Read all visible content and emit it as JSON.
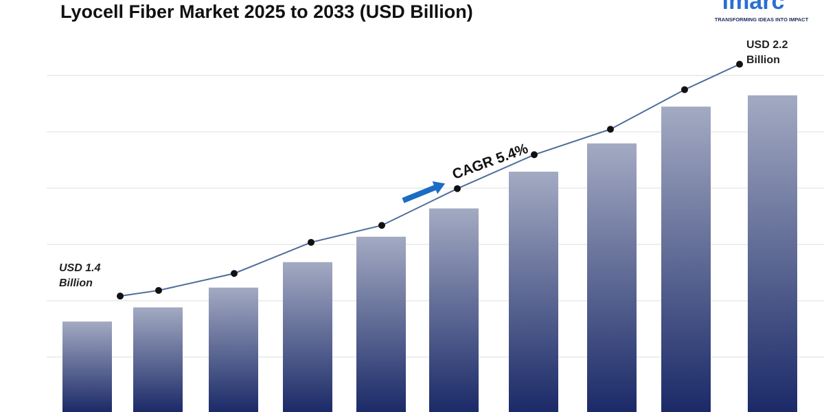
{
  "chart_data": {
    "type": "bar",
    "title": "Lyocell Fiber Market 2025 to 2033 (USD Billion)",
    "categories": [
      null,
      null,
      null,
      null,
      null,
      null,
      null,
      null,
      null,
      null
    ],
    "values": [
      1.4,
      1.45,
      1.52,
      1.61,
      1.7,
      1.8,
      1.93,
      2.03,
      2.16,
      2.2
    ],
    "trend_values": [
      1.49,
      1.51,
      1.57,
      1.68,
      1.74,
      1.87,
      1.99,
      2.08,
      2.22,
      2.31
    ],
    "bar_color_top": "#a3aac2",
    "bar_color_bottom": "#1b2a68",
    "trend_color": "#4d6b9c",
    "ylim": [
      1.08,
      2.27
    ],
    "start_label": [
      "USD 1.4",
      "Billion"
    ],
    "end_label": [
      "USD 2.2",
      "Billion"
    ],
    "cagr_label": "CAGR 5.4%"
  },
  "logo": {
    "name": "imarc",
    "tagline": "TRANSFORMING IDEAS INTO IMPACT"
  }
}
